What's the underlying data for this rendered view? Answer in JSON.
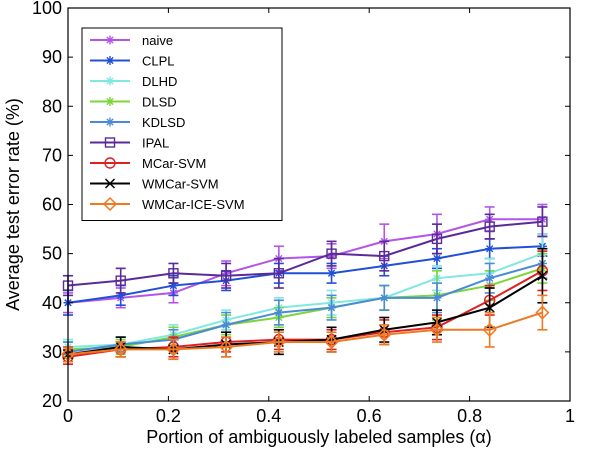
{
  "chart_data": {
    "type": "line",
    "xlabel": "Portion of ambiguously labeled samples (α)",
    "ylabel": "Average test error rate (%)",
    "xlim": [
      0,
      1
    ],
    "ylim": [
      20,
      100
    ],
    "xticks": [
      "0",
      "0.2",
      "0.4",
      "0.6",
      "0.8",
      "1"
    ],
    "yticks": [
      "20",
      "30",
      "40",
      "50",
      "60",
      "70",
      "80",
      "90",
      "100"
    ],
    "grid": false,
    "legend_position": "top-left",
    "x": [
      0.0,
      0.105,
      0.21,
      0.315,
      0.42,
      0.525,
      0.63,
      0.735,
      0.84,
      0.945
    ],
    "series": [
      {
        "name": "naive",
        "color": "#B355E8",
        "marker": "asterisk",
        "values": [
          40.0,
          41.0,
          42.0,
          46.0,
          49.0,
          49.5,
          52.5,
          54.0,
          57.0,
          57.0
        ],
        "errors": [
          2.0,
          2.0,
          2.0,
          2.5,
          2.5,
          2.5,
          3.5,
          4.0,
          2.5,
          3.0
        ]
      },
      {
        "name": "CLPL",
        "color": "#2050D8",
        "marker": "asterisk",
        "values": [
          40.0,
          41.5,
          43.5,
          44.5,
          46.0,
          46.0,
          47.5,
          49.0,
          51.0,
          51.5
        ],
        "errors": [
          2.5,
          2.0,
          2.0,
          2.0,
          2.0,
          2.0,
          2.0,
          2.0,
          2.0,
          2.0
        ]
      },
      {
        "name": "DLHD",
        "color": "#7FE8E0",
        "marker": "asterisk",
        "values": [
          31.0,
          31.5,
          33.5,
          36.5,
          39.0,
          40.0,
          41.0,
          45.0,
          46.0,
          50.0
        ],
        "errors": [
          1.5,
          1.5,
          2.0,
          2.0,
          2.0,
          2.5,
          2.5,
          2.5,
          3.0,
          4.0
        ]
      },
      {
        "name": "DLSD",
        "color": "#7CD63A",
        "marker": "asterisk",
        "values": [
          30.5,
          31.0,
          33.0,
          35.5,
          37.0,
          39.0,
          41.0,
          41.5,
          43.5,
          47.0
        ],
        "errors": [
          1.5,
          1.5,
          2.0,
          2.0,
          2.0,
          2.0,
          2.5,
          5.0,
          3.0,
          3.0
        ]
      },
      {
        "name": "KDLSD",
        "color": "#4A8AD8",
        "marker": "asterisk",
        "values": [
          30.0,
          31.5,
          32.5,
          35.5,
          38.0,
          39.0,
          41.0,
          41.0,
          45.0,
          48.0
        ],
        "errors": [
          2.0,
          1.5,
          2.0,
          2.5,
          2.5,
          2.5,
          2.5,
          3.0,
          3.0,
          3.0
        ]
      },
      {
        "name": "IPAL",
        "color": "#5A2A98",
        "marker": "square",
        "values": [
          43.5,
          44.5,
          46.0,
          45.5,
          46.0,
          50.0,
          49.5,
          53.0,
          55.5,
          56.5
        ],
        "errors": [
          2.0,
          2.5,
          2.0,
          2.5,
          3.0,
          2.5,
          3.0,
          3.0,
          2.5,
          3.0
        ]
      },
      {
        "name": "MCar-SVM",
        "color": "#E02020",
        "marker": "circle",
        "values": [
          29.0,
          30.5,
          31.0,
          32.0,
          32.5,
          32.5,
          34.0,
          35.0,
          40.5,
          46.5
        ],
        "errors": [
          1.5,
          1.5,
          2.0,
          2.0,
          2.0,
          2.0,
          2.5,
          2.5,
          3.0,
          4.0
        ]
      },
      {
        "name": "WMCar-SVM",
        "color": "#000000",
        "marker": "x",
        "values": [
          29.5,
          31.0,
          30.5,
          31.5,
          32.0,
          32.5,
          34.5,
          36.0,
          39.0,
          45.5
        ],
        "errors": [
          1.5,
          2.0,
          2.0,
          2.5,
          2.5,
          2.5,
          2.5,
          2.5,
          4.0,
          5.5
        ]
      },
      {
        "name": "WMCar-ICE-SVM",
        "color": "#F07820",
        "marker": "diamond",
        "values": [
          29.5,
          30.5,
          30.5,
          31.0,
          32.0,
          32.0,
          33.5,
          34.5,
          34.5,
          38.0
        ],
        "errors": [
          1.5,
          1.5,
          2.0,
          2.0,
          2.0,
          2.0,
          2.0,
          2.5,
          3.5,
          3.5
        ]
      }
    ]
  }
}
